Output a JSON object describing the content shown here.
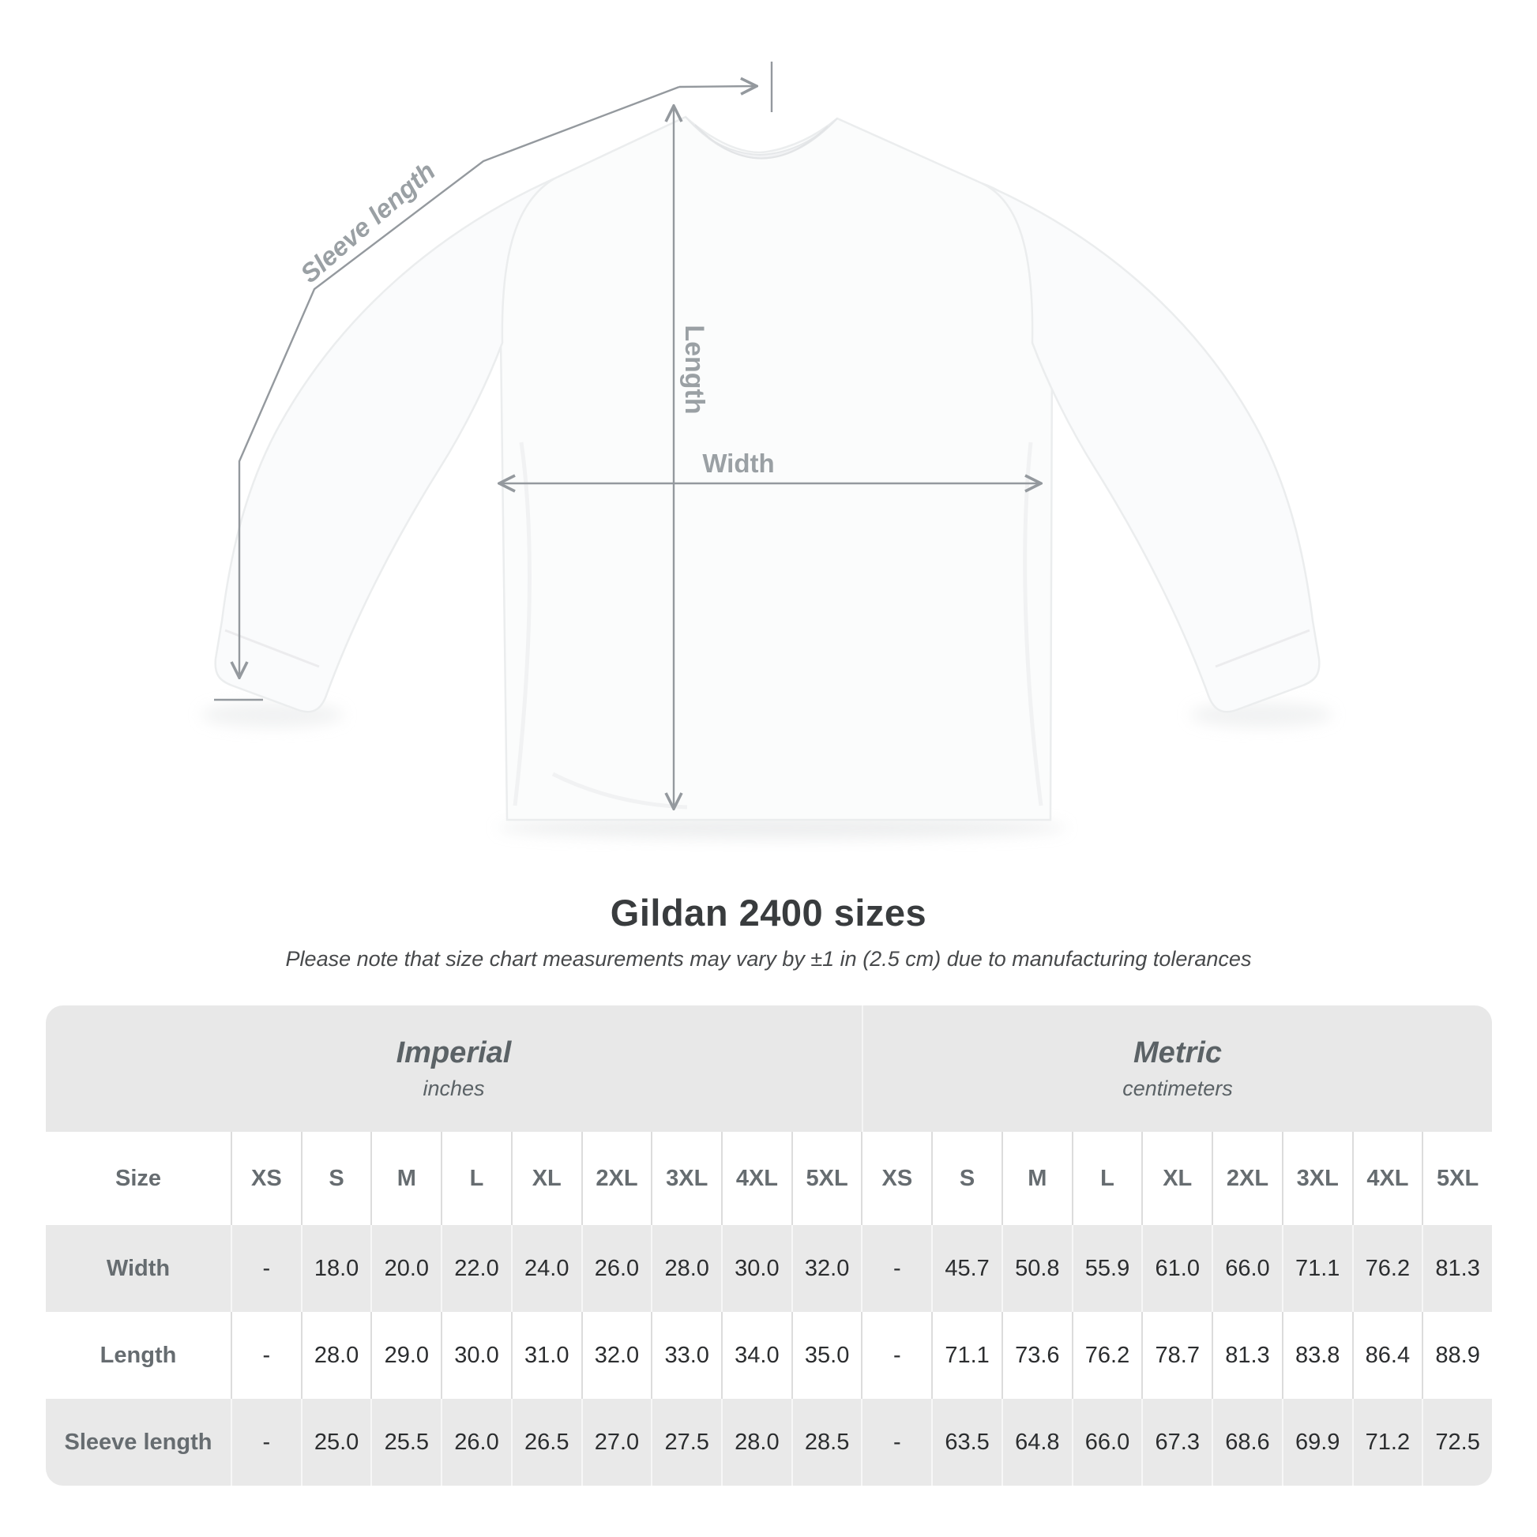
{
  "title": "Gildan 2400 sizes",
  "subtitle": "Please note that size chart measurements may vary by ±1 in (2.5 cm) due to manufacturing tolerances",
  "diagram": {
    "labels": {
      "sleeve_length": "Sleeve length",
      "length": "Length",
      "width": "Width"
    },
    "line_color": "#94999e",
    "label_color": "#9aa0a4"
  },
  "table": {
    "size_header": "Size",
    "sizes": [
      "XS",
      "S",
      "M",
      "L",
      "XL",
      "2XL",
      "3XL",
      "4XL",
      "5XL"
    ],
    "unit_groups": [
      {
        "label": "Imperial",
        "sublabel": "inches"
      },
      {
        "label": "Metric",
        "sublabel": "centimeters"
      }
    ],
    "rows": [
      {
        "label": "Width",
        "imperial": [
          "-",
          "18.0",
          "20.0",
          "22.0",
          "24.0",
          "26.0",
          "28.0",
          "30.0",
          "32.0"
        ],
        "metric": [
          "-",
          "45.7",
          "50.8",
          "55.9",
          "61.0",
          "66.0",
          "71.1",
          "76.2",
          "81.3"
        ]
      },
      {
        "label": "Length",
        "imperial": [
          "-",
          "28.0",
          "29.0",
          "30.0",
          "31.0",
          "32.0",
          "33.0",
          "34.0",
          "35.0"
        ],
        "metric": [
          "-",
          "71.1",
          "73.6",
          "76.2",
          "78.7",
          "81.3",
          "83.8",
          "86.4",
          "88.9"
        ]
      },
      {
        "label": "Sleeve length",
        "imperial": [
          "-",
          "25.0",
          "25.5",
          "26.0",
          "26.5",
          "27.0",
          "27.5",
          "28.0",
          "28.5"
        ],
        "metric": [
          "-",
          "63.5",
          "64.8",
          "66.0",
          "67.3",
          "68.6",
          "69.9",
          "71.2",
          "72.5"
        ]
      }
    ],
    "colors": {
      "header_band": "#e8e8e8",
      "row_gray": "#e9e9e9",
      "label_text": "#666c70",
      "value_text": "#2b2d2f"
    }
  },
  "chart_data": {
    "type": "table",
    "title": "Gildan 2400 sizes",
    "note": "Size chart measurements may vary by ±1 in (2.5 cm) due to manufacturing tolerances",
    "columns": [
      "XS",
      "S",
      "M",
      "L",
      "XL",
      "2XL",
      "3XL",
      "4XL",
      "5XL"
    ],
    "units": [
      "inches",
      "centimeters"
    ],
    "rows": [
      {
        "measurement": "Width",
        "imperial_in": [
          null,
          18.0,
          20.0,
          22.0,
          24.0,
          26.0,
          28.0,
          30.0,
          32.0
        ],
        "metric_cm": [
          null,
          45.7,
          50.8,
          55.9,
          61.0,
          66.0,
          71.1,
          76.2,
          81.3
        ]
      },
      {
        "measurement": "Length",
        "imperial_in": [
          null,
          28.0,
          29.0,
          30.0,
          31.0,
          32.0,
          33.0,
          34.0,
          35.0
        ],
        "metric_cm": [
          null,
          71.1,
          73.6,
          76.2,
          78.7,
          81.3,
          83.8,
          86.4,
          88.9
        ]
      },
      {
        "measurement": "Sleeve length",
        "imperial_in": [
          null,
          25.0,
          25.5,
          26.0,
          26.5,
          27.0,
          27.5,
          28.0,
          28.5
        ],
        "metric_cm": [
          null,
          63.5,
          64.8,
          66.0,
          67.3,
          68.6,
          69.9,
          71.2,
          72.5
        ]
      }
    ]
  }
}
